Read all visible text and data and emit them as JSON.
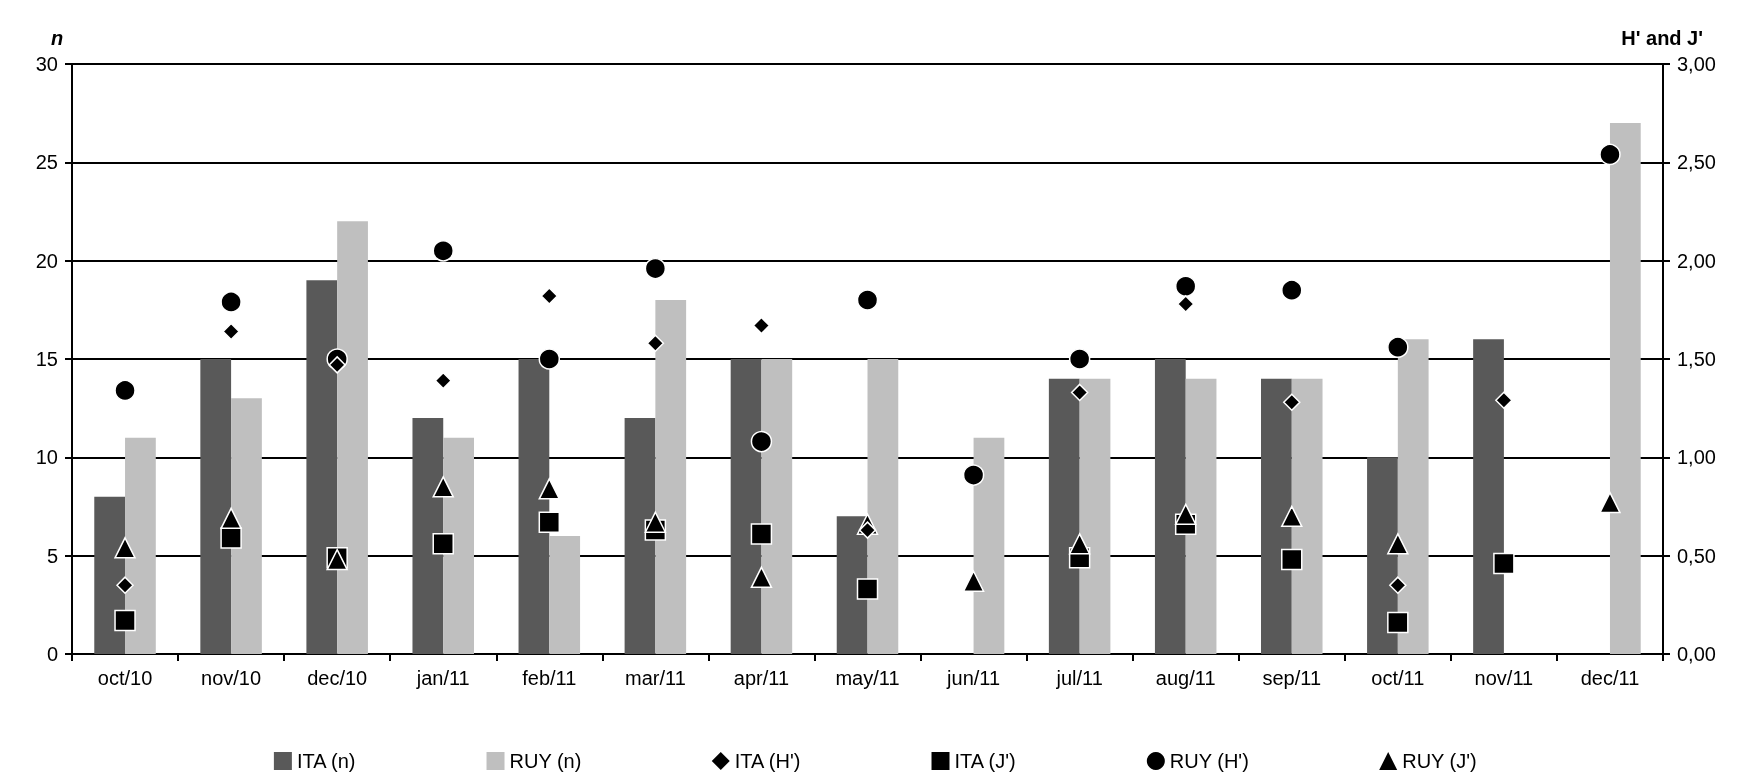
{
  "chart_data": {
    "type": "bar",
    "ylabel": "n",
    "y2label": "H' and J'",
    "categories": [
      "oct/10",
      "nov/10",
      "dec/10",
      "jan/11",
      "feb/11",
      "mar/11",
      "apr/11",
      "may/11",
      "jun/11",
      "jul/11",
      "aug/11",
      "sep/11",
      "oct/11",
      "nov/11",
      "dec/11"
    ],
    "ylim": [
      0,
      30
    ],
    "yticks": [
      0,
      5,
      10,
      15,
      20,
      25,
      30
    ],
    "y2lim": [
      0,
      3
    ],
    "y2ticks": [
      {
        "value": 0,
        "label": "0,00"
      },
      {
        "value": 0.5,
        "label": "0,50"
      },
      {
        "value": 1,
        "label": "1,00"
      },
      {
        "value": 1.5,
        "label": "1,50"
      },
      {
        "value": 2,
        "label": "2,00"
      },
      {
        "value": 2.5,
        "label": "2,50"
      },
      {
        "value": 3,
        "label": "3,00"
      }
    ],
    "grid": "y",
    "legend": "bottom",
    "series": [
      {
        "name": "ITA (n)",
        "color": "#595959",
        "values": [
          8,
          15,
          19,
          12,
          15,
          12,
          15,
          7,
          null,
          14,
          15,
          14,
          10,
          16,
          null
        ]
      },
      {
        "name": "RUY (n)",
        "color": "#bfbfbf",
        "values": [
          11,
          13,
          22,
          11,
          6,
          18,
          15,
          15,
          11,
          14,
          14,
          14,
          16,
          null,
          27
        ]
      },
      {
        "name": "ITA (H')",
        "type": "scatter",
        "axis": "y2",
        "marker": "diamond",
        "color": "#000000",
        "values": [
          0.35,
          1.64,
          1.47,
          1.39,
          1.82,
          1.58,
          1.67,
          0.63,
          null,
          1.33,
          1.78,
          1.28,
          0.35,
          1.29,
          null
        ]
      },
      {
        "name": "ITA (J')",
        "type": "scatter",
        "axis": "y2",
        "marker": "square",
        "color": "#000000",
        "values": [
          0.17,
          0.59,
          0.49,
          0.56,
          0.67,
          0.63,
          0.61,
          0.33,
          null,
          0.49,
          0.66,
          0.48,
          0.16,
          0.46,
          null
        ]
      },
      {
        "name": "RUY (H')",
        "type": "scatter",
        "axis": "y2",
        "marker": "circle",
        "color": "#000000",
        "values": [
          1.34,
          1.79,
          1.5,
          2.05,
          1.5,
          1.96,
          1.08,
          1.8,
          0.91,
          1.5,
          1.87,
          1.85,
          1.56,
          null,
          2.54
        ]
      },
      {
        "name": "RUY (J')",
        "type": "scatter",
        "axis": "y2",
        "marker": "triangle",
        "color": "#000000",
        "values": [
          0.54,
          0.69,
          0.48,
          0.85,
          0.84,
          0.67,
          0.39,
          0.66,
          0.37,
          0.56,
          0.71,
          0.7,
          0.56,
          null,
          0.77
        ]
      }
    ]
  }
}
